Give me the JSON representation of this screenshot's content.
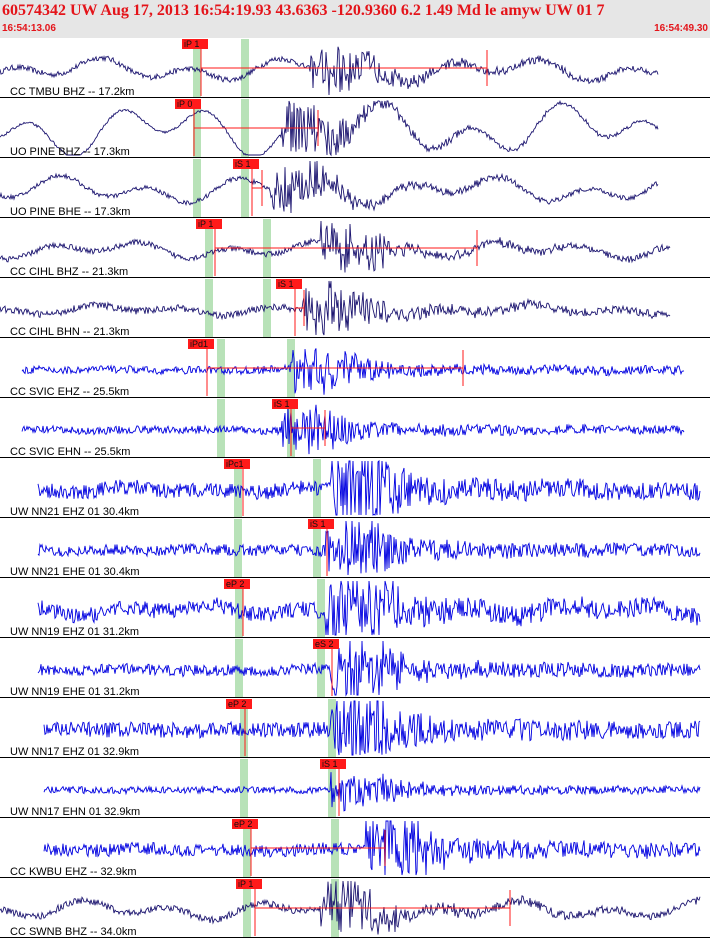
{
  "header": {
    "title": "60574342 UW Aug 17, 2013 16:54:19.93   43.6363 -120.9360  6.2 1.49 Md le amyw UW 01    7",
    "start_time": "16:54:13.06",
    "end_time": "16:54:49.30"
  },
  "colors": {
    "header_bg": "#e6e6e6",
    "header_text": "#e4141a",
    "short_period_trace": "#1c1570",
    "broadband_trace": "#0000e0",
    "pick_flag": "#ff1a1a",
    "pick_window": "#b8e2b8",
    "separator": "#000000"
  },
  "channels": [
    {
      "label": "CC TMBU BHZ -- 17.2km",
      "pick": "iP 1",
      "color": "dark"
    },
    {
      "label": "UO PINE BHZ -- 17.3km",
      "pick": "iP 0",
      "color": "dark"
    },
    {
      "label": "UO PINE BHE -- 17.3km",
      "pick": "iS 1",
      "color": "dark"
    },
    {
      "label": "CC CIHL BHZ -- 21.3km",
      "pick": "iP 1",
      "color": "dark"
    },
    {
      "label": "CC CIHL BHN -- 21.3km",
      "pick": "iS 1",
      "color": "dark"
    },
    {
      "label": "CC SVIC EHZ -- 25.5km",
      "pick": "iPd1",
      "color": "blue"
    },
    {
      "label": "CC SVIC EHN -- 25.5km",
      "pick": "iS 1",
      "color": "blue"
    },
    {
      "label": "UW NN21 EHZ 01 30.4km",
      "pick": "iPc1",
      "color": "blue"
    },
    {
      "label": "UW NN21 EHE 01 30.4km",
      "pick": "iS 1",
      "color": "blue"
    },
    {
      "label": "UW NN19 EHZ 01 31.2km",
      "pick": "eP 2",
      "color": "blue"
    },
    {
      "label": "UW NN19 EHE 01 31.2km",
      "pick": "eS 2",
      "color": "blue"
    },
    {
      "label": "UW NN17 EHZ 01 32.9km",
      "pick": "eP 2",
      "color": "blue"
    },
    {
      "label": "UW NN17 EHN 01 32.9km",
      "pick": "iS 1",
      "color": "blue"
    },
    {
      "label": "CC KWBU EHZ -- 32.9km",
      "pick": "eP 2",
      "color": "blue"
    },
    {
      "label": "CC SWNB BHZ -- 34.0km",
      "pick": "iP 1",
      "color": "dark"
    }
  ]
}
